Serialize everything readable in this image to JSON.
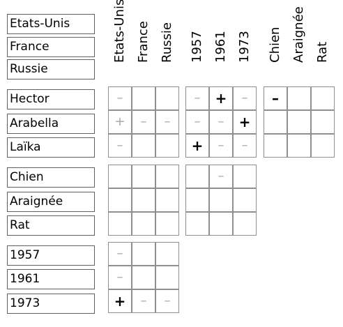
{
  "columns": [
    "Etats-Unis",
    "France",
    "Russie",
    "1957",
    "1961",
    "1973",
    "Chien",
    "Araignée",
    "Rat"
  ],
  "top_labels": [
    "Etats-Unis",
    "France",
    "Russie"
  ],
  "rows": [
    "Hector",
    "Arabella",
    "Laïka",
    "Chien",
    "Araignée",
    "Rat",
    "1957",
    "1961",
    "1973"
  ],
  "symbols": {
    "weak-minus": "–",
    "weak-plus": "+",
    "plus": "+",
    "minus": "–"
  },
  "grids": [
    {
      "id": "names-countries",
      "rows": [
        "Hector",
        "Arabella",
        "Laïka"
      ],
      "cols": [
        "Etats-Unis",
        "France",
        "Russie"
      ],
      "cells": [
        [
          "weak-minus",
          "",
          ""
        ],
        [
          "weak-plus",
          "weak-minus",
          "weak-minus"
        ],
        [
          "weak-minus",
          "",
          ""
        ]
      ]
    },
    {
      "id": "names-years",
      "rows": [
        "Hector",
        "Arabella",
        "Laïka"
      ],
      "cols": [
        "1957",
        "1961",
        "1973"
      ],
      "cells": [
        [
          "weak-minus",
          "plus",
          "weak-minus"
        ],
        [
          "weak-minus",
          "weak-minus",
          "plus"
        ],
        [
          "plus",
          "weak-minus",
          "weak-minus"
        ]
      ]
    },
    {
      "id": "names-animals",
      "rows": [
        "Hector",
        "Arabella",
        "Laïka"
      ],
      "cols": [
        "Chien",
        "Araignée",
        "Rat"
      ],
      "cells": [
        [
          "minus",
          "",
          ""
        ],
        [
          "",
          "",
          ""
        ],
        [
          "",
          "",
          ""
        ]
      ]
    },
    {
      "id": "animals-countries",
      "rows": [
        "Chien",
        "Araignée",
        "Rat"
      ],
      "cols": [
        "Etats-Unis",
        "France",
        "Russie"
      ],
      "cells": [
        [
          "",
          "",
          ""
        ],
        [
          "",
          "",
          ""
        ],
        [
          "",
          "",
          ""
        ]
      ]
    },
    {
      "id": "animals-years",
      "rows": [
        "Chien",
        "Araignée",
        "Rat"
      ],
      "cols": [
        "1957",
        "1961",
        "1973"
      ],
      "cells": [
        [
          "",
          "weak-minus",
          ""
        ],
        [
          "",
          "",
          ""
        ],
        [
          "",
          "",
          ""
        ]
      ]
    },
    {
      "id": "years-countries",
      "rows": [
        "1957",
        "1961",
        "1973"
      ],
      "cols": [
        "Etats-Unis",
        "France",
        "Russie"
      ],
      "cells": [
        [
          "weak-minus",
          "",
          ""
        ],
        [
          "weak-minus",
          "",
          ""
        ],
        [
          "plus",
          "weak-minus",
          "weak-minus"
        ]
      ]
    }
  ]
}
